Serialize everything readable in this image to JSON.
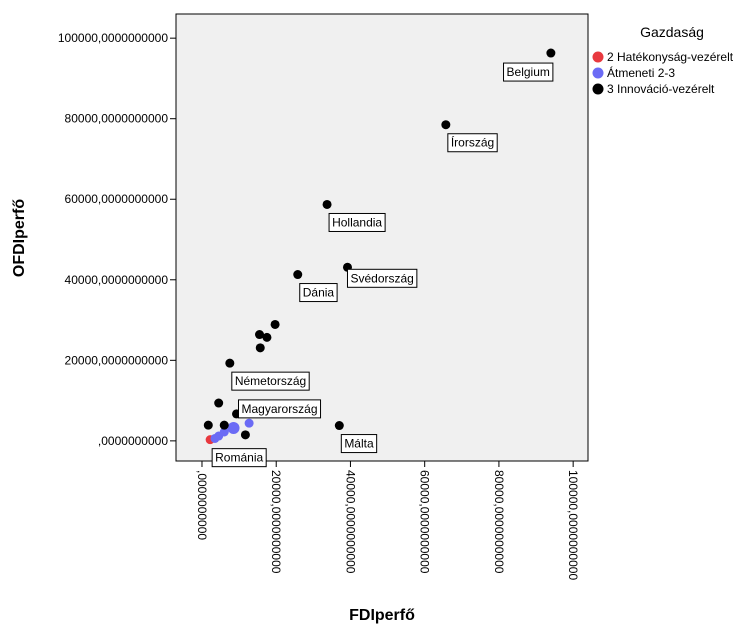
{
  "chart_data": {
    "type": "scatter",
    "xlabel": "FDIperfő",
    "ylabel": "OFDIperfő",
    "xlim": [
      -7000,
      104000
    ],
    "ylim": [
      -5000,
      106000
    ],
    "x_ticks": [
      {
        "value": 0,
        "label": ",0000000000"
      },
      {
        "value": 20000,
        "label": "20000,0000000000"
      },
      {
        "value": 40000,
        "label": "40000,0000000000"
      },
      {
        "value": 60000,
        "label": "60000,0000000000"
      },
      {
        "value": 80000,
        "label": "80000,0000000000"
      },
      {
        "value": 100000,
        "label": "100000,0000000000"
      }
    ],
    "y_ticks": [
      {
        "value": 0,
        "label": ",0000000000"
      },
      {
        "value": 20000,
        "label": "20000,0000000000"
      },
      {
        "value": 40000,
        "label": "40000,0000000000"
      },
      {
        "value": 60000,
        "label": "60000,0000000000"
      },
      {
        "value": 80000,
        "label": "80000,0000000000"
      },
      {
        "value": 100000,
        "label": "100000,0000000000"
      }
    ],
    "grid": false,
    "legend_title": "Gazdaság",
    "legend_position": "top-right",
    "series": [
      {
        "name": "2 Hatékonyság-vezérelt",
        "color": "#e8393f",
        "points": [
          {
            "x": 2200,
            "y": 300
          }
        ]
      },
      {
        "name": "Átmeneti 2-3",
        "color": "#6b6bf5",
        "points": [
          {
            "x": 4500,
            "y": 1200
          },
          {
            "x": 8500,
            "y": 3200
          },
          {
            "x": 12700,
            "y": 4400
          },
          {
            "x": 6000,
            "y": 2200
          },
          {
            "x": 3500,
            "y": 600
          }
        ]
      },
      {
        "name": "3 Innováció-vezérelt",
        "color": "#000000",
        "points": [
          {
            "x": 94000,
            "y": 96300
          },
          {
            "x": 65700,
            "y": 78500
          },
          {
            "x": 33700,
            "y": 58700
          },
          {
            "x": 25800,
            "y": 41300
          },
          {
            "x": 39200,
            "y": 43100
          },
          {
            "x": 19700,
            "y": 28900
          },
          {
            "x": 15500,
            "y": 26400
          },
          {
            "x": 17500,
            "y": 25700
          },
          {
            "x": 15700,
            "y": 23100
          },
          {
            "x": 7500,
            "y": 19300
          },
          {
            "x": 4500,
            "y": 9400
          },
          {
            "x": 9300,
            "y": 6700
          },
          {
            "x": 1700,
            "y": 3900
          },
          {
            "x": 6000,
            "y": 3900
          },
          {
            "x": 37000,
            "y": 3800
          },
          {
            "x": 11700,
            "y": 1500
          }
        ]
      }
    ],
    "point_labels": [
      {
        "text": "Belgium",
        "x": 94000,
        "y": 96300,
        "anchor": "bl"
      },
      {
        "text": "Írország",
        "x": 65700,
        "y": 78500,
        "anchor": "br"
      },
      {
        "text": "Hollandia",
        "x": 33700,
        "y": 58700,
        "anchor": "br"
      },
      {
        "text": "Dánia",
        "x": 25800,
        "y": 41300,
        "anchor": "br"
      },
      {
        "text": "Svédország",
        "x": 39200,
        "y": 43100,
        "anchor": "r"
      },
      {
        "text": "Németország",
        "x": 7500,
        "y": 19300,
        "anchor": "br"
      },
      {
        "text": "Magyarország",
        "x": 9300,
        "y": 6700,
        "anchor": "tr"
      },
      {
        "text": "Románia",
        "x": 2200,
        "y": 300,
        "anchor": "br"
      },
      {
        "text": "Málta",
        "x": 37000,
        "y": 3800,
        "anchor": "br"
      }
    ]
  }
}
